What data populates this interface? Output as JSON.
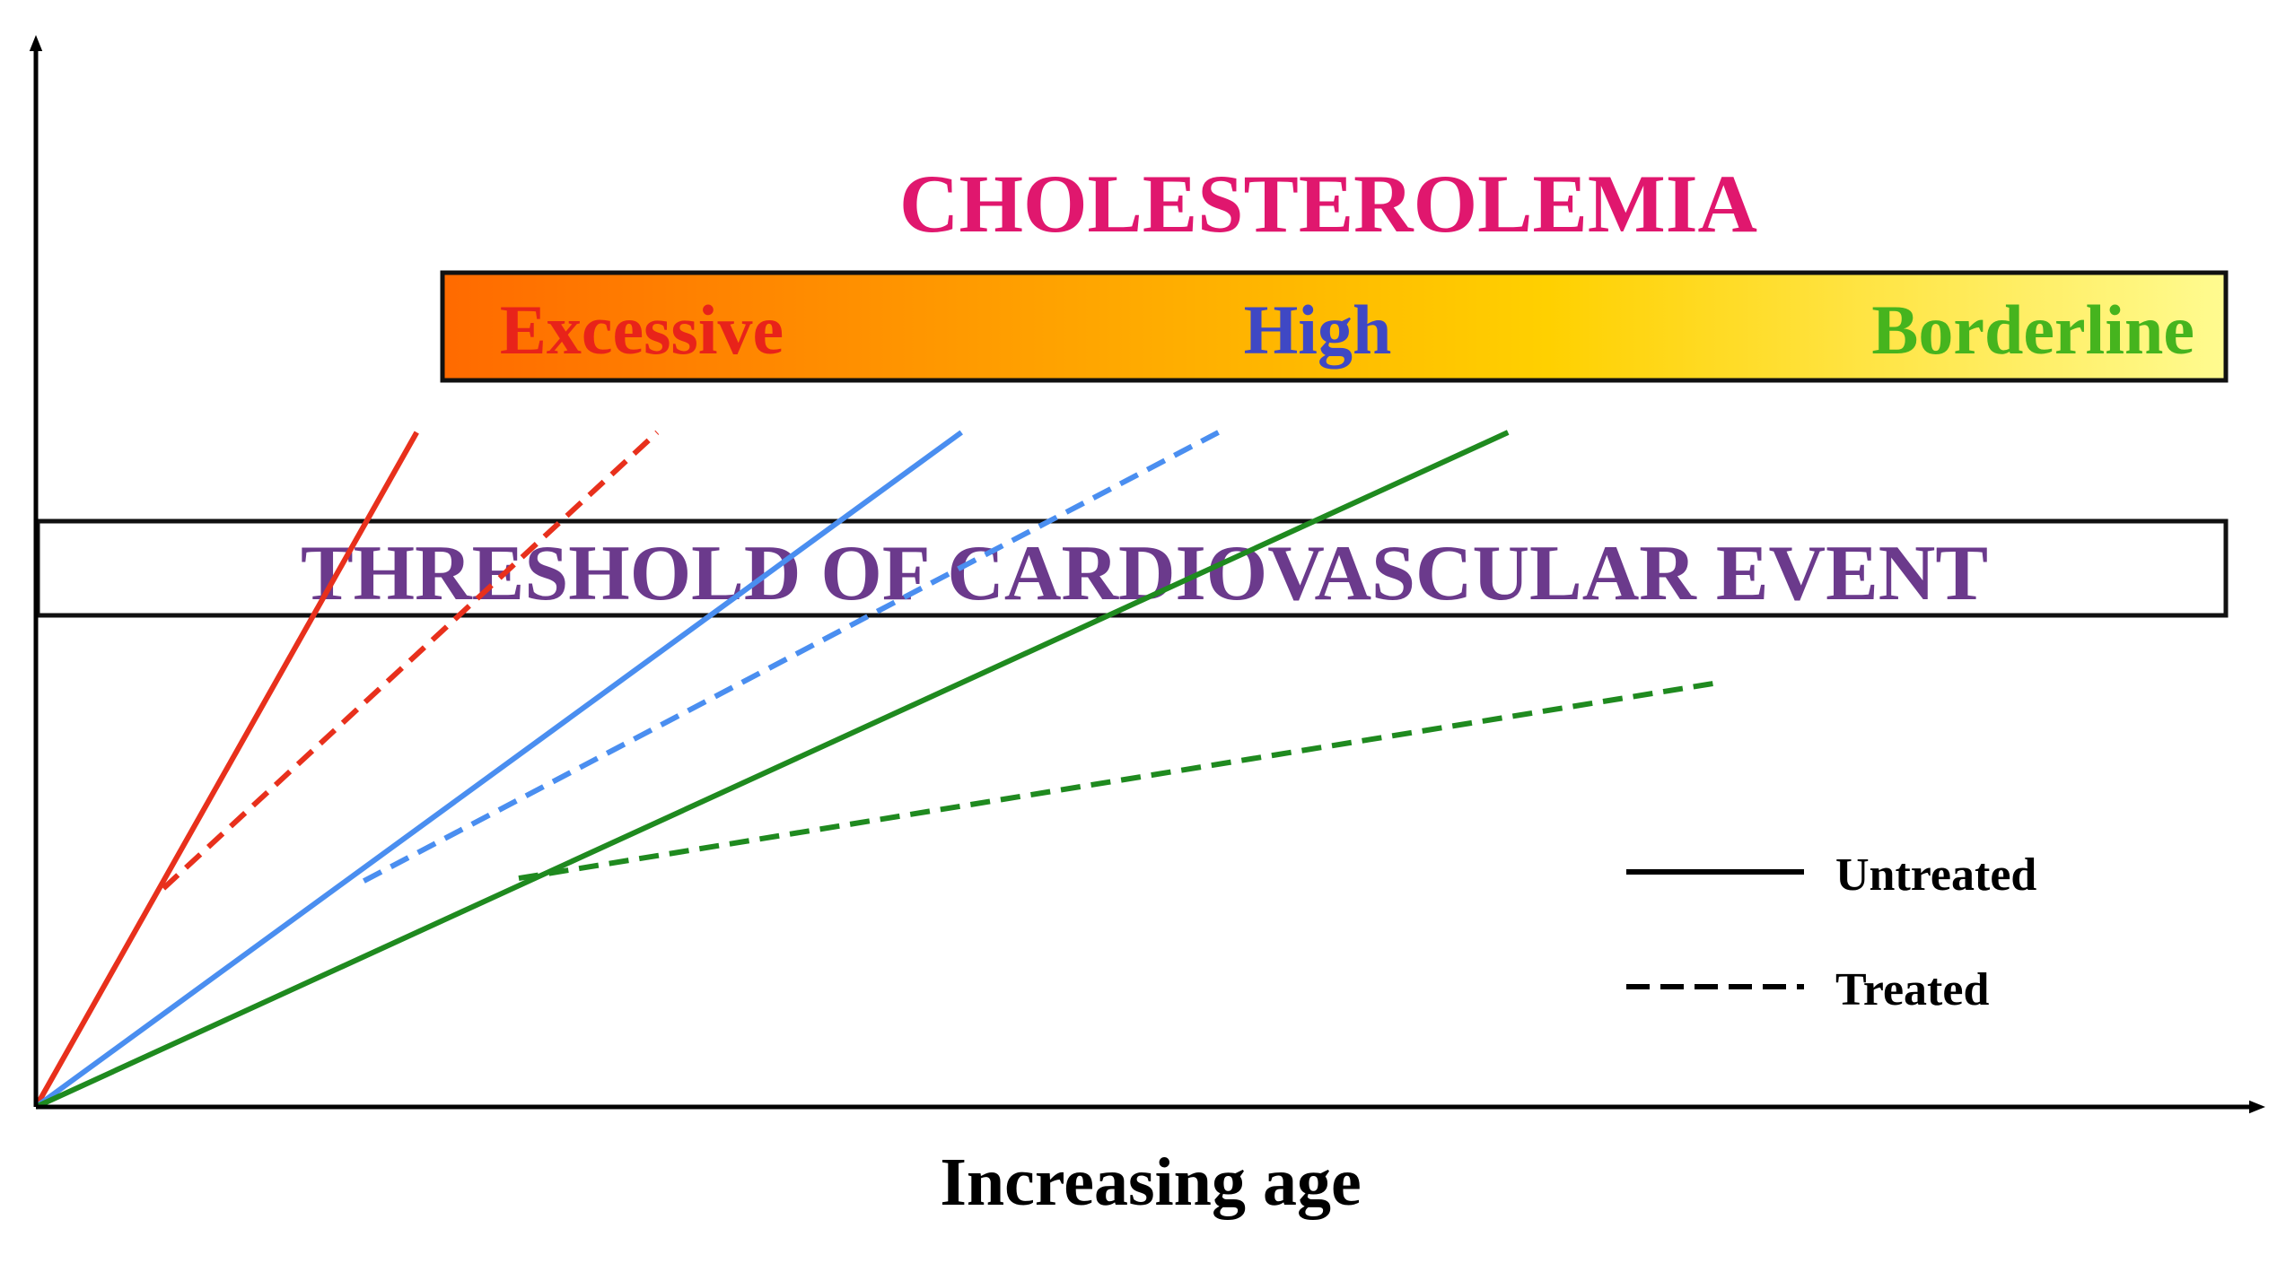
{
  "chart_data": {
    "type": "line",
    "title": "CHOLESTEROLEMIA",
    "xlabel": "Increasing age",
    "ylabel": "",
    "threshold_label": "THRESHOLD OF CARDIOVASCULAR EVENT",
    "categories": [
      {
        "key": "excessive",
        "label": "Excessive",
        "color": "#e8231a"
      },
      {
        "key": "high",
        "label": "High",
        "color": "#3f48c4"
      },
      {
        "key": "borderline",
        "label": "Borderline",
        "color": "#46b41e"
      }
    ],
    "gradient": {
      "start": "#ff6a00",
      "mid": "#ffd000",
      "end": "#fffb90"
    },
    "title_color": "#e0176e",
    "threshold_color": "#6b3a8c",
    "xlim": [
      0,
      100
    ],
    "ylim": [
      0,
      100
    ],
    "threshold_band": [
      72,
      86
    ],
    "series": [
      {
        "name": "Excessive untreated",
        "group": "excessive",
        "treated": false,
        "color": "#e8301c",
        "points": [
          [
            0,
            0
          ],
          [
            20.9,
            100
          ]
        ]
      },
      {
        "name": "Excessive treated",
        "group": "excessive",
        "treated": true,
        "color": "#e8301c",
        "points": [
          [
            7,
            32.4
          ],
          [
            34.1,
            100
          ]
        ]
      },
      {
        "name": "High untreated",
        "group": "high",
        "treated": false,
        "color": "#4a8ef0",
        "points": [
          [
            0,
            0
          ],
          [
            50.8,
            100
          ]
        ]
      },
      {
        "name": "High treated",
        "group": "high",
        "treated": true,
        "color": "#4a8ef0",
        "points": [
          [
            18,
            33.5
          ],
          [
            64.9,
            100
          ]
        ]
      },
      {
        "name": "Borderline untreated",
        "group": "borderline",
        "treated": false,
        "color": "#1f8a1f",
        "points": [
          [
            0,
            0
          ],
          [
            80.8,
            100
          ]
        ]
      },
      {
        "name": "Borderline treated",
        "group": "borderline",
        "treated": true,
        "color": "#1f8a1f",
        "points": [
          [
            26.5,
            33.9
          ],
          [
            92.6,
            63
          ]
        ]
      }
    ],
    "legend": [
      {
        "label": "Untreated",
        "style": "solid"
      },
      {
        "label": "Treated",
        "style": "dashed"
      }
    ],
    "legend_position": "bottom-right"
  }
}
